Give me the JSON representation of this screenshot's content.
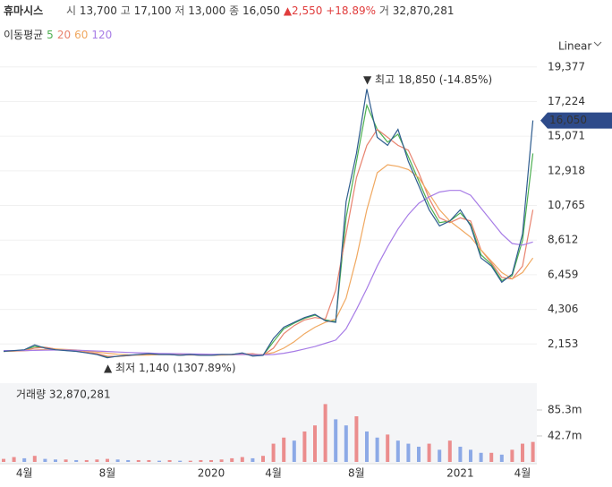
{
  "header": {
    "name": "휴마시스",
    "open_label": "시",
    "open": "13,700",
    "high_label": "고",
    "high": "17,100",
    "low_label": "저",
    "low": "13,000",
    "close_label": "종",
    "close": "16,050",
    "change_arrow": "▲",
    "change": "2,550",
    "change_pct": "+18.89%",
    "volume_label": "거",
    "volume": "32,870,281"
  },
  "ma_title": "이동평균",
  "scale_label": "Linear",
  "chart_data": [
    {
      "type": "line",
      "color": "#2f5d8f",
      "values": [
        1700,
        1750,
        1800,
        2100,
        1900,
        1800,
        1750,
        1700,
        1600,
        1500,
        1300,
        1400,
        1450,
        1500,
        1550,
        1500,
        1500,
        1450,
        1500,
        1450,
        1450,
        1500,
        1500,
        1600,
        1400,
        1450,
        2500,
        3200,
        3500,
        3800,
        4000,
        3600,
        3500,
        11000,
        14000,
        18000,
        15000,
        14500,
        15500,
        13500,
        12000,
        10500,
        9500,
        9800,
        10500,
        9500,
        7500,
        7000,
        6000,
        6500,
        9000,
        16050
      ],
      "series": [
        {
          "name": "5",
          "color": "#4caf50",
          "values": [
            1700,
            1730,
            1780,
            2000,
            1950,
            1830,
            1760,
            1710,
            1620,
            1520,
            1350,
            1380,
            1440,
            1490,
            1540,
            1510,
            1500,
            1460,
            1490,
            1460,
            1450,
            1490,
            1500,
            1580,
            1430,
            1450,
            2300,
            3100,
            3450,
            3750,
            3950,
            3650,
            3550,
            10000,
            13500,
            17000,
            15500,
            14700,
            15200,
            13800,
            12300,
            10800,
            9700,
            9800,
            10300,
            9600,
            7700,
            7100,
            6100,
            6400,
            8600,
            14000
          ]
        },
        {
          "name": "20",
          "color": "#e8826e",
          "values": [
            1700,
            1720,
            1760,
            1900,
            1950,
            1850,
            1780,
            1720,
            1650,
            1560,
            1400,
            1380,
            1430,
            1480,
            1530,
            1520,
            1500,
            1470,
            1480,
            1460,
            1460,
            1480,
            1500,
            1530,
            1550,
            1450,
            1900,
            2800,
            3300,
            3650,
            3800,
            3700,
            5500,
            9000,
            12500,
            14500,
            15500,
            15000,
            14500,
            14200,
            12800,
            11200,
            10000,
            9700,
            10000,
            9800,
            8000,
            7200,
            6300,
            6200,
            7000,
            10500
          ]
        },
        {
          "name": "60",
          "color": "#f0a860",
          "values": [
            1700,
            1710,
            1730,
            1780,
            1820,
            1840,
            1820,
            1780,
            1720,
            1650,
            1580,
            1520,
            1480,
            1460,
            1470,
            1490,
            1500,
            1500,
            1490,
            1480,
            1470,
            1470,
            1480,
            1500,
            1500,
            1500,
            1620,
            1900,
            2300,
            2800,
            3200,
            3500,
            3700,
            5000,
            7500,
            10500,
            12800,
            13300,
            13200,
            13000,
            12500,
            11500,
            10500,
            9800,
            9300,
            8800,
            8000,
            7300,
            6600,
            6200,
            6600,
            7500
          ]
        },
        {
          "name": "120",
          "color": "#a77ce6",
          "values": [
            1750,
            1750,
            1750,
            1760,
            1770,
            1780,
            1780,
            1770,
            1750,
            1720,
            1690,
            1660,
            1630,
            1610,
            1590,
            1570,
            1560,
            1550,
            1540,
            1530,
            1520,
            1510,
            1500,
            1500,
            1490,
            1480,
            1500,
            1580,
            1700,
            1850,
            2000,
            2200,
            2400,
            3100,
            4300,
            5600,
            7000,
            8200,
            9300,
            10200,
            10900,
            11300,
            11600,
            11700,
            11700,
            11400,
            10600,
            9800,
            9000,
            8400,
            8300,
            8500
          ]
        }
      ],
      "ylim": [
        0,
        20200
      ],
      "yticks": [
        {
          "value": 19377,
          "label": "19,377"
        },
        {
          "value": 17224,
          "label": "17,224"
        },
        {
          "value": 15071,
          "label": "15,071"
        },
        {
          "value": 12918,
          "label": "12,918"
        },
        {
          "value": 10765,
          "label": "10,765"
        },
        {
          "value": 8612,
          "label": "8,612"
        },
        {
          "value": 6459,
          "label": "6,459"
        },
        {
          "value": 4306,
          "label": "4,306"
        },
        {
          "value": 2153,
          "label": "2,153"
        }
      ],
      "grid": true,
      "annotations": [
        {
          "text": "▼ 최고 18,850 (-14.85%)",
          "at": "max"
        },
        {
          "text": "▲ 최저 1,140 (1307.89%)",
          "at": "min"
        }
      ],
      "last_price_label": "16,050"
    },
    {
      "type": "bar",
      "title": "거래량 32,870,281",
      "up_color": "#e86a6a",
      "down_color": "#6a8fe0",
      "categories": [
        null,
        null,
        "4월",
        null,
        null,
        null,
        null,
        null,
        null,
        null,
        "8월",
        null,
        null,
        null,
        null,
        null,
        null,
        null,
        null,
        null,
        "2020",
        null,
        null,
        null,
        null,
        null,
        "4월",
        null,
        null,
        null,
        null,
        null,
        null,
        null,
        "8월",
        null,
        null,
        null,
        null,
        null,
        null,
        null,
        null,
        null,
        "2021",
        null,
        null,
        null,
        null,
        null,
        "4월",
        null
      ],
      "values": [
        5,
        8,
        6,
        10,
        5,
        4,
        4,
        3,
        3,
        4,
        5,
        4,
        3,
        3,
        3,
        2,
        3,
        2,
        2,
        3,
        3,
        4,
        6,
        8,
        6,
        10,
        30,
        40,
        35,
        50,
        60,
        95,
        70,
        60,
        75,
        50,
        40,
        45,
        35,
        30,
        25,
        30,
        20,
        35,
        25,
        20,
        15,
        15,
        12,
        20,
        30,
        32.87
      ],
      "ylim": [
        0,
        129.4
      ],
      "yticks": [
        {
          "value": 85.3,
          "label": "85.3m"
        },
        {
          "value": 42.7,
          "label": "42.7m"
        }
      ]
    }
  ]
}
